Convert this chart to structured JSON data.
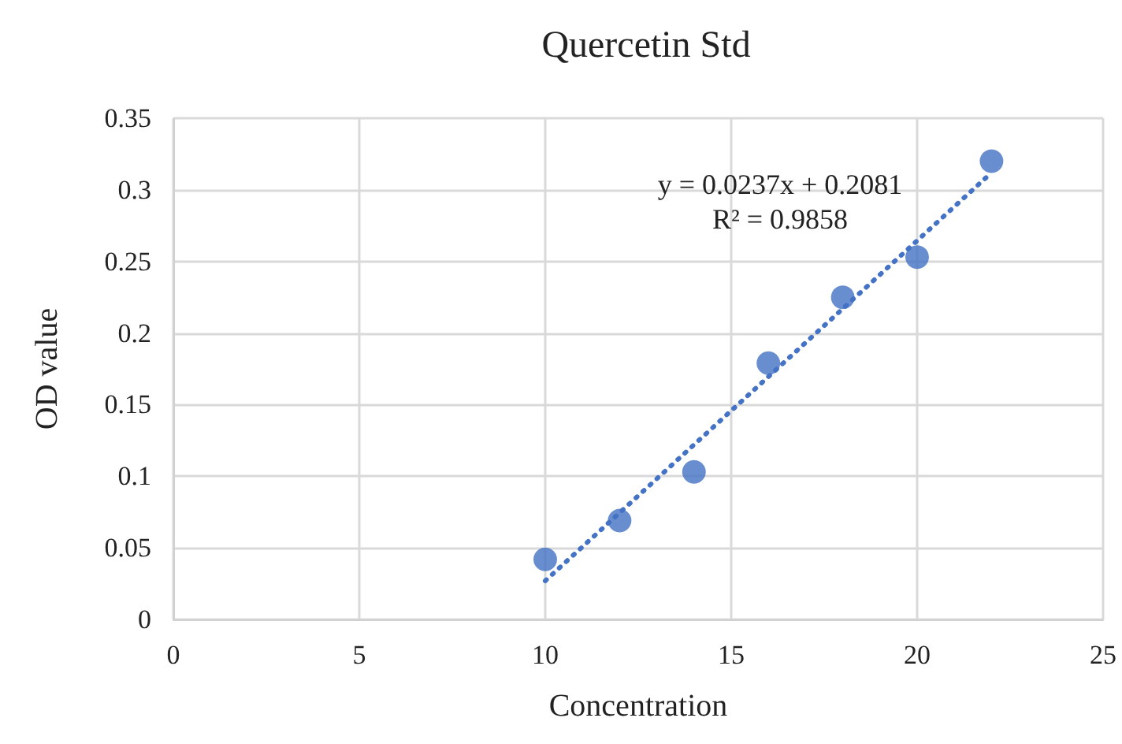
{
  "chart_data": {
    "type": "scatter",
    "title": "Quercetin Std",
    "xlabel": "Concentration",
    "ylabel": "OD value",
    "series": [
      {
        "color": "#4472c4",
        "x": [
          10,
          12,
          14,
          16,
          18,
          20,
          22
        ],
        "values": [
          0.042,
          0.069,
          0.103,
          0.179,
          0.225,
          0.253,
          0.32
        ],
        "marker": "circle"
      },
      {
        "type": "line",
        "color": "#4472c4",
        "x": [
          10,
          22
        ],
        "values": [
          0.027,
          0.312
        ],
        "line_style": "dotted",
        "marker": "none"
      }
    ],
    "annotations": [
      "y = 0.0237x + 0.2081",
      "R² = 0.9858"
    ],
    "xlim": [
      0,
      25
    ],
    "xticks": [
      0,
      5,
      10,
      15,
      20,
      25
    ],
    "ylim": [
      0,
      0.35
    ],
    "yticks": [
      0,
      0.05,
      0.1,
      0.15,
      0.2,
      0.25,
      0.3,
      0.35
    ],
    "grid": true
  }
}
